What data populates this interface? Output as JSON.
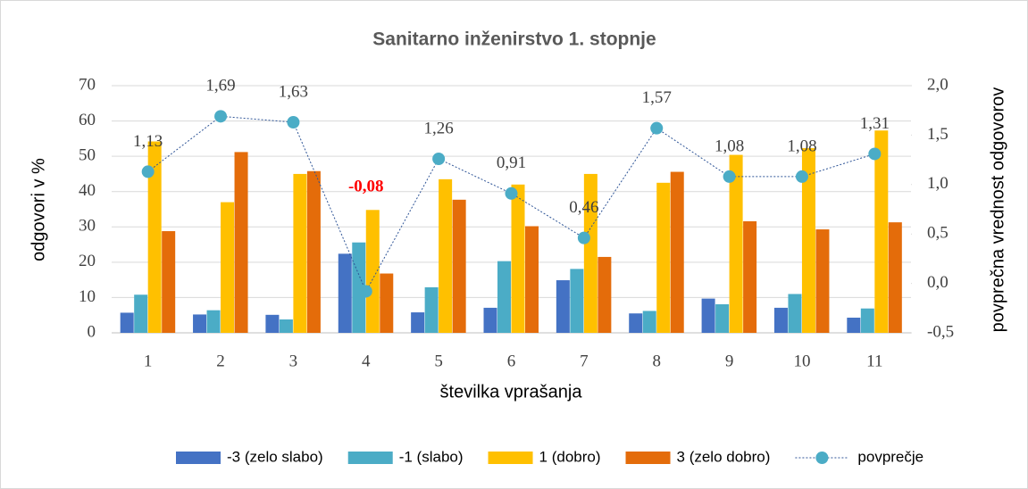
{
  "chart_data": {
    "type": "bar",
    "title": "Sanitarno inženirstvo 1. stopnje",
    "x_label": "številka vprašanja",
    "y_label": "odgovori v %",
    "y2_label": "povprečna vrednost odgovorov",
    "categories": [
      "1",
      "2",
      "3",
      "4",
      "5",
      "6",
      "7",
      "8",
      "9",
      "10",
      "11"
    ],
    "series": [
      {
        "name": "-3 (zelo slabo)",
        "type": "bar",
        "color": "#4472c4",
        "values": [
          5.7,
          5.2,
          5.1,
          22.4,
          5.8,
          7.1,
          14.9,
          5.5,
          9.7,
          7.1,
          4.3
        ]
      },
      {
        "name": "-1 (slabo)",
        "type": "bar",
        "color": "#4bacc6",
        "values": [
          10.8,
          6.4,
          3.8,
          25.6,
          12.9,
          20.3,
          18.1,
          6.2,
          8.1,
          11.0,
          6.9
        ]
      },
      {
        "name": "1 (dobro)",
        "type": "bar",
        "color": "#ffc000",
        "values": [
          54.2,
          37.0,
          45.0,
          34.8,
          43.5,
          42.0,
          45.0,
          42.5,
          50.4,
          52.3,
          57.3
        ]
      },
      {
        "name": "3 (zelo dobro)",
        "type": "bar",
        "color": "#e46c0a",
        "values": [
          28.8,
          51.2,
          45.8,
          16.8,
          37.7,
          30.2,
          21.5,
          45.6,
          31.6,
          29.3,
          31.3
        ]
      },
      {
        "name": "povprečje",
        "type": "line",
        "axis": "y2",
        "color": "#4bacc6",
        "line_color": "#2f5597",
        "values": [
          1.13,
          1.69,
          1.63,
          -0.08,
          1.26,
          0.91,
          0.46,
          1.57,
          1.08,
          1.08,
          1.31
        ],
        "value_labels": [
          "1,13",
          "1,69",
          "1,63",
          "-0,08",
          "1,26",
          "0,91",
          "0,46",
          "1,57",
          "1,08",
          "1,08",
          "1,31"
        ],
        "value_label_colors": [
          "#404040",
          "#404040",
          "#404040",
          "#ff0000",
          "#404040",
          "#404040",
          "#404040",
          "#404040",
          "#404040",
          "#404040",
          "#404040"
        ]
      }
    ],
    "ylim": [
      0,
      70
    ],
    "yticks": [
      0,
      10,
      20,
      30,
      40,
      50,
      60,
      70
    ],
    "y2lim": [
      -0.5,
      2.0
    ],
    "y2ticks": [
      {
        "value": -0.5,
        "label": "-0,5"
      },
      {
        "value": 0,
        "label": "0,0"
      },
      {
        "value": 0.5,
        "label": "0,5"
      },
      {
        "value": 1.0,
        "label": "1,0"
      },
      {
        "value": 1.5,
        "label": "1,5"
      },
      {
        "value": 2.0,
        "label": "2,0"
      }
    ],
    "grid": true,
    "legend": "bottom"
  }
}
